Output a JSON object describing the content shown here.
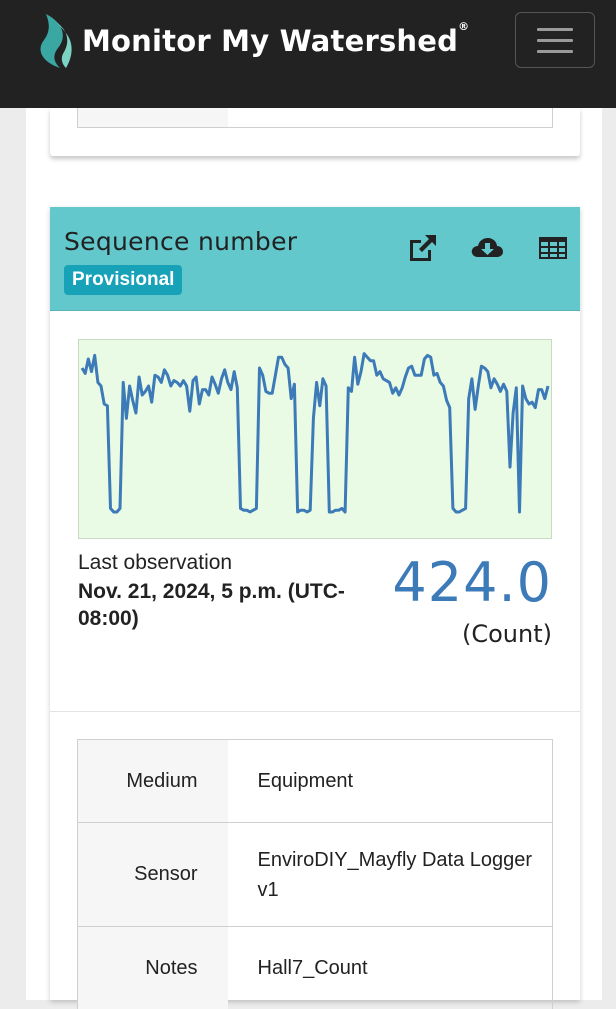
{
  "navbar": {
    "brand": "Monitor My Watershed",
    "reg_mark": "®",
    "logo_icon": "watershed-leaf-icon",
    "menu_icon": "hamburger-icon",
    "colors": {
      "background": "#222222",
      "logo_teal": "#3aa7a3"
    }
  },
  "card": {
    "title": "Sequence number",
    "badge": "Provisional",
    "icons": [
      "external-link-icon",
      "cloud-download-icon",
      "table-icon"
    ],
    "header_color": "#62c8cc",
    "last_observation_label": "Last observation",
    "last_observation_date": "Nov. 21, 2024, 5 p.m. (UTC-08:00)",
    "value": "424.0",
    "unit": "(Count)"
  },
  "chart_data": {
    "type": "line",
    "title": "",
    "xlabel": "",
    "ylabel": "",
    "grid": false,
    "line_color": "#3d7ab8",
    "background": "#eafbe5",
    "series": [
      {
        "values": [
          90,
          87,
          95,
          88,
          97,
          82,
          80,
          70,
          69,
          12,
          10,
          10,
          12,
          82,
          62,
          80,
          72,
          65,
          85,
          75,
          77,
          80,
          71,
          86,
          85,
          82,
          89,
          86,
          80,
          83,
          82,
          80,
          83,
          80,
          66,
          83,
          85,
          70,
          78,
          78,
          75,
          85,
          81,
          76,
          84,
          89,
          82,
          78,
          88,
          79,
          12,
          11,
          11,
          10,
          11,
          12,
          90,
          86,
          77,
          76,
          76,
          86,
          96,
          96,
          92,
          90,
          73,
          81,
          10,
          11,
          11,
          10,
          11,
          62,
          82,
          69,
          84,
          80,
          10,
          10,
          11,
          11,
          12,
          10,
          79,
          77,
          96,
          81,
          88,
          98,
          96,
          94,
          94,
          86,
          88,
          84,
          83,
          82,
          76,
          79,
          75,
          79,
          85,
          90,
          91,
          86,
          86,
          86,
          95,
          97,
          96,
          86,
          87,
          82,
          80,
          72,
          68,
          12,
          10,
          10,
          11,
          12,
          73,
          84,
          67,
          80,
          91,
          90,
          88,
          79,
          84,
          81,
          77,
          81,
          77,
          35,
          65,
          79,
          10,
          80,
          73,
          70,
          71,
          68,
          78,
          78,
          73,
          80
        ]
      }
    ],
    "ylim": [
      0,
      100
    ]
  },
  "metadata_table": [
    {
      "key": "Medium",
      "value": "Equipment"
    },
    {
      "key": "Sensor",
      "value": "EnviroDIY_Mayfly Data Logger v1"
    },
    {
      "key": "Notes",
      "value": "Hall7_Count"
    }
  ]
}
